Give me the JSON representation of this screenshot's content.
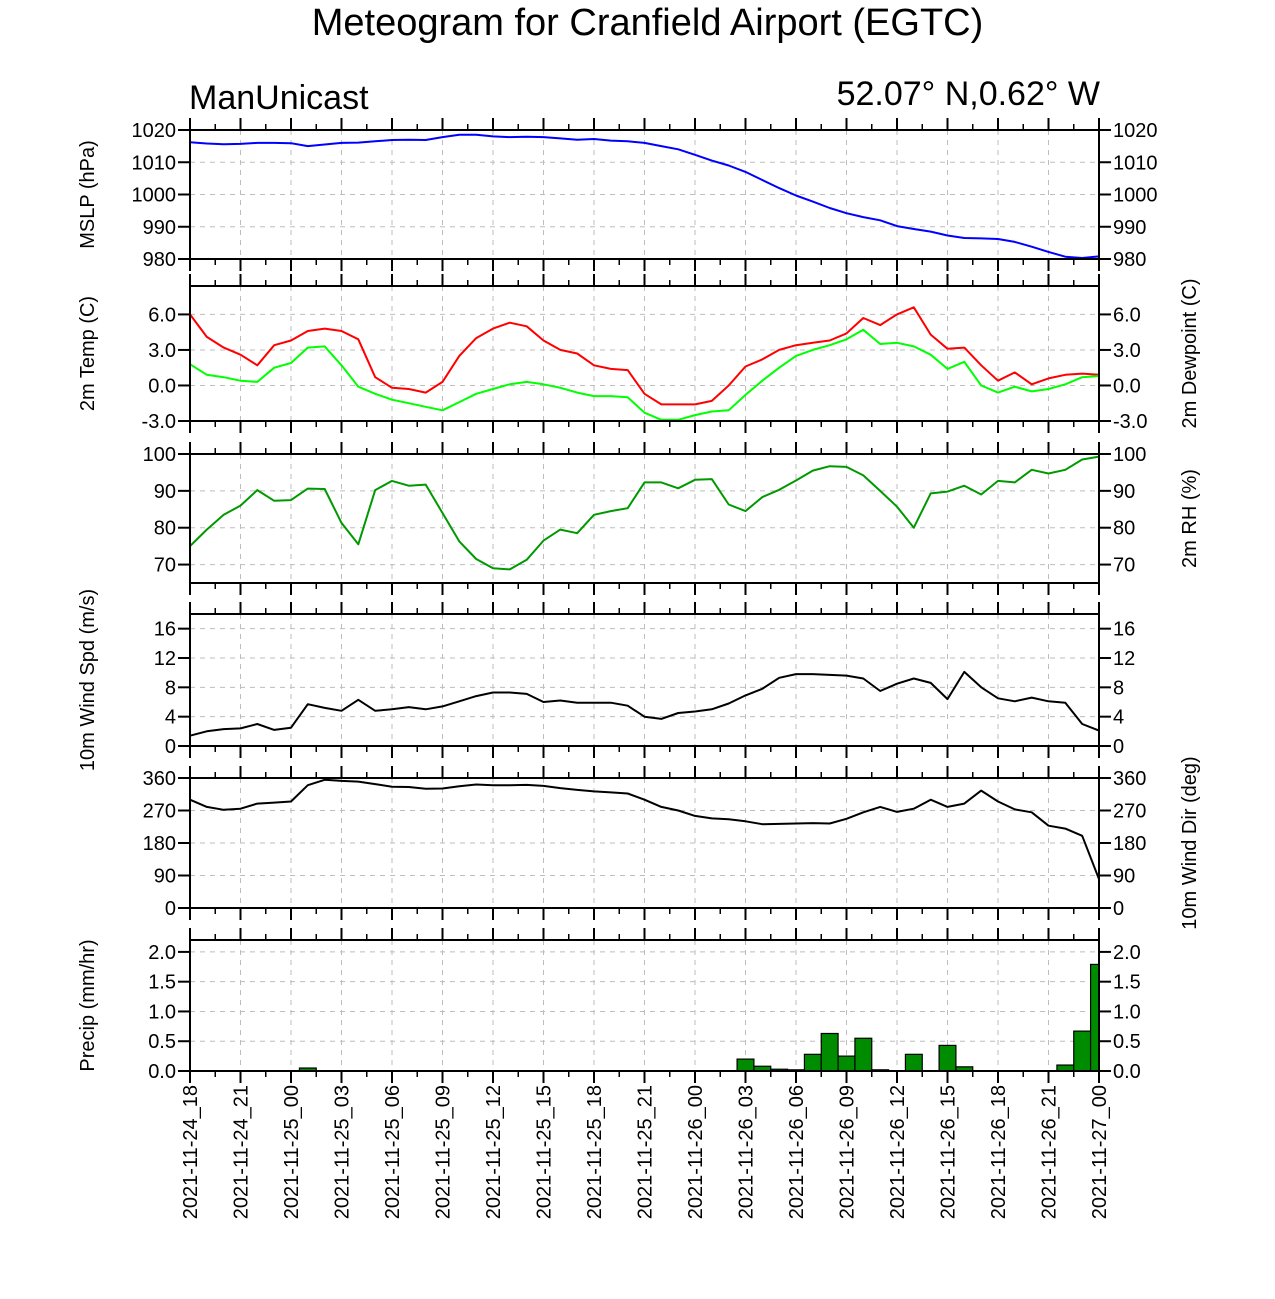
{
  "header": {
    "title": "Meteogram for Cranfield Airport (EGTC)",
    "model": "ManUnicast",
    "location": "52.07° N,0.62° W"
  },
  "colors": {
    "mslp": "#0000ff",
    "temp": "#ff0000",
    "dewpoint": "#00ff00",
    "rh": "#009900",
    "wind": "#000000",
    "precip_fill": "#008c00",
    "grid": "#bdbdbd"
  },
  "chart_data": [
    {
      "id": "mslp",
      "type": "line",
      "ylabel_left": "MSLP (hPa)",
      "ylabel_right": "",
      "ylim": [
        980,
        1020
      ],
      "yticks": [
        980,
        990,
        1000,
        1010,
        1020
      ],
      "tick_labels": [
        "980",
        "990",
        "1000",
        "1010",
        "1020"
      ],
      "tick_labels_right": true,
      "grid": true,
      "series": [
        {
          "color": "#0000ff",
          "values": [
            1016.2,
            1015.8,
            1015.6,
            1015.7,
            1016.0,
            1016.0,
            1015.9,
            1015.0,
            1015.5,
            1016.0,
            1016.1,
            1016.5,
            1016.9,
            1017.0,
            1016.9,
            1017.8,
            1018.5,
            1018.5,
            1018.0,
            1017.8,
            1017.9,
            1017.8,
            1017.4,
            1017.0,
            1017.2,
            1016.7,
            1016.5,
            1016.0,
            1015.0,
            1014.0,
            1012.3,
            1010.5,
            1009.0,
            1007.0,
            1004.5,
            1002.0,
            999.7,
            997.8,
            995.8,
            994.2,
            993.0,
            992.0,
            990.2,
            989.3,
            988.5,
            987.3,
            986.5,
            986.4,
            986.2,
            985.3,
            983.8,
            982.2,
            980.7,
            980.3,
            980.8
          ]
        }
      ]
    },
    {
      "id": "temp",
      "type": "line",
      "ylabel_left": "2m Temp (C)",
      "ylabel_right": "2m Dewpoint (C)",
      "ylim": [
        -3,
        8.4
      ],
      "yticks": [
        -3,
        0,
        3,
        6
      ],
      "tick_labels": [
        "-3.0",
        "0.0",
        "3.0",
        "6.0"
      ],
      "tick_labels_right": true,
      "grid": true,
      "series": [
        {
          "color": "#ff0000",
          "values": [
            6.0,
            4.1,
            3.2,
            2.6,
            1.7,
            3.4,
            3.8,
            4.6,
            4.8,
            4.6,
            3.9,
            0.7,
            -0.2,
            -0.3,
            -0.6,
            0.3,
            2.5,
            4.0,
            4.8,
            5.3,
            5.0,
            3.8,
            3.0,
            2.7,
            1.7,
            1.4,
            1.3,
            -0.7,
            -1.6,
            -1.6,
            -1.6,
            -1.3,
            0.0,
            1.6,
            2.2,
            3.0,
            3.4,
            3.6,
            3.8,
            4.4,
            5.7,
            5.1,
            6.0,
            6.6,
            4.3,
            3.1,
            3.2,
            1.7,
            0.4,
            1.1,
            0.1,
            0.6,
            0.9,
            1.0,
            0.9
          ]
        },
        {
          "color": "#00ff00",
          "values": [
            1.8,
            0.9,
            0.7,
            0.4,
            0.3,
            1.5,
            1.9,
            3.2,
            3.3,
            1.7,
            -0.1,
            -0.7,
            -1.2,
            -1.5,
            -1.8,
            -2.1,
            -1.4,
            -0.7,
            -0.3,
            0.1,
            0.3,
            0.1,
            -0.2,
            -0.6,
            -0.9,
            -0.9,
            -1.0,
            -2.3,
            -2.9,
            -2.9,
            -2.5,
            -2.2,
            -2.1,
            -0.8,
            0.4,
            1.5,
            2.5,
            3.0,
            3.4,
            3.9,
            4.7,
            3.5,
            3.6,
            3.3,
            2.6,
            1.4,
            2.0,
            0.0,
            -0.6,
            -0.1,
            -0.5,
            -0.3,
            0.1,
            0.7,
            0.8
          ]
        }
      ]
    },
    {
      "id": "rh",
      "type": "line",
      "ylabel_left": "",
      "ylabel_right": "2m RH (%)",
      "ylim": [
        65,
        100
      ],
      "yticks": [
        70,
        80,
        90,
        100
      ],
      "tick_labels": [
        "70",
        "80",
        "90",
        "100"
      ],
      "tick_labels_right": true,
      "grid": true,
      "series": [
        {
          "color": "#009900",
          "values": [
            75.0,
            79.5,
            83.5,
            86.0,
            90.2,
            87.3,
            87.5,
            90.6,
            90.5,
            81.3,
            75.5,
            90.2,
            92.7,
            91.4,
            91.7,
            84.0,
            76.3,
            71.5,
            69.0,
            68.7,
            71.3,
            76.5,
            79.5,
            78.5,
            83.5,
            84.5,
            85.3,
            92.3,
            92.3,
            90.7,
            93.0,
            93.2,
            86.3,
            84.5,
            88.3,
            90.3,
            92.8,
            95.5,
            96.7,
            96.5,
            94.2,
            90.0,
            85.7,
            80.0,
            89.3,
            89.8,
            91.4,
            89.0,
            92.7,
            92.3,
            95.7,
            94.7,
            95.7,
            98.5,
            99.3
          ]
        }
      ]
    },
    {
      "id": "wind_speed",
      "type": "line",
      "ylabel_left": "10m Wind Spd (m/s)",
      "ylabel_right": "",
      "ylim": [
        0,
        18
      ],
      "yticks": [
        0,
        4,
        8,
        12,
        16
      ],
      "tick_labels": [
        "0",
        "4",
        "8",
        "12",
        "16"
      ],
      "tick_labels_right": true,
      "grid": true,
      "series": [
        {
          "color": "#000000",
          "values": [
            1.4,
            2.0,
            2.3,
            2.4,
            3.0,
            2.2,
            2.5,
            5.7,
            5.2,
            4.8,
            6.3,
            4.8,
            5.0,
            5.3,
            5.0,
            5.4,
            6.1,
            6.8,
            7.3,
            7.3,
            7.1,
            6.0,
            6.2,
            5.9,
            5.9,
            5.9,
            5.5,
            4.0,
            3.7,
            4.5,
            4.7,
            5.0,
            5.8,
            6.9,
            7.8,
            9.3,
            9.8,
            9.8,
            9.7,
            9.6,
            9.2,
            7.5,
            8.5,
            9.2,
            8.6,
            6.4,
            10.1,
            8.0,
            6.5,
            6.1,
            6.6,
            6.1,
            5.9,
            3.0,
            2.1
          ]
        }
      ]
    },
    {
      "id": "wind_dir",
      "type": "line",
      "ylabel_left": "",
      "ylabel_right": "10m Wind Dir (deg)",
      "ylim": [
        0,
        360
      ],
      "yticks": [
        0,
        90,
        180,
        270,
        360
      ],
      "tick_labels": [
        "0",
        "90",
        "180",
        "270",
        "360"
      ],
      "tick_labels_right": true,
      "grid": true,
      "series": [
        {
          "color": "#000000",
          "values": [
            300,
            280,
            272,
            275,
            289,
            292,
            295,
            340,
            355,
            352,
            350,
            343,
            336,
            335,
            330,
            331,
            337,
            342,
            340,
            340,
            341,
            338,
            332,
            327,
            323,
            320,
            317,
            300,
            280,
            270,
            255,
            248,
            246,
            240,
            232,
            233,
            234,
            235,
            234,
            247,
            265,
            280,
            266,
            275,
            300,
            280,
            289,
            325,
            295,
            273,
            265,
            228,
            220,
            200,
            80
          ]
        }
      ]
    },
    {
      "id": "precip",
      "type": "bar",
      "ylabel_left": "Precip (mm/hr)",
      "ylabel_right": "",
      "ylim": [
        0,
        2.2
      ],
      "yticks": [
        0,
        0.5,
        1.0,
        1.5,
        2.0
      ],
      "tick_labels": [
        "0.0",
        "0.5",
        "1.0",
        "1.5",
        "2.0"
      ],
      "tick_labels_right": true,
      "grid": true,
      "series": [
        {
          "color": "#008c00",
          "values": [
            0,
            0,
            0,
            0,
            0,
            0,
            0,
            0.05,
            0,
            0,
            0,
            0,
            0,
            0,
            0,
            0,
            0,
            0,
            0,
            0,
            0,
            0,
            0,
            0,
            0,
            0,
            0,
            0,
            0,
            0,
            0,
            0,
            0,
            0.2,
            0.08,
            0.03,
            0.02,
            0.28,
            0.63,
            0.25,
            0.55,
            0.02,
            0,
            0.28,
            0,
            0.43,
            0.07,
            0,
            0,
            0,
            0,
            0,
            0.1,
            0.67,
            1.79
          ]
        }
      ]
    }
  ],
  "time_axis": {
    "labels": [
      "2021-11-24_18",
      "2021-11-24_21",
      "2021-11-25_00",
      "2021-11-25_03",
      "2021-11-25_06",
      "2021-11-25_09",
      "2021-11-25_12",
      "2021-11-25_15",
      "2021-11-25_18",
      "2021-11-25_21",
      "2021-11-26_00",
      "2021-11-26_03",
      "2021-11-26_06",
      "2021-11-26_09",
      "2021-11-26_12",
      "2021-11-26_15",
      "2021-11-26_18",
      "2021-11-26_21",
      "2021-11-27_00"
    ],
    "points": 55
  }
}
